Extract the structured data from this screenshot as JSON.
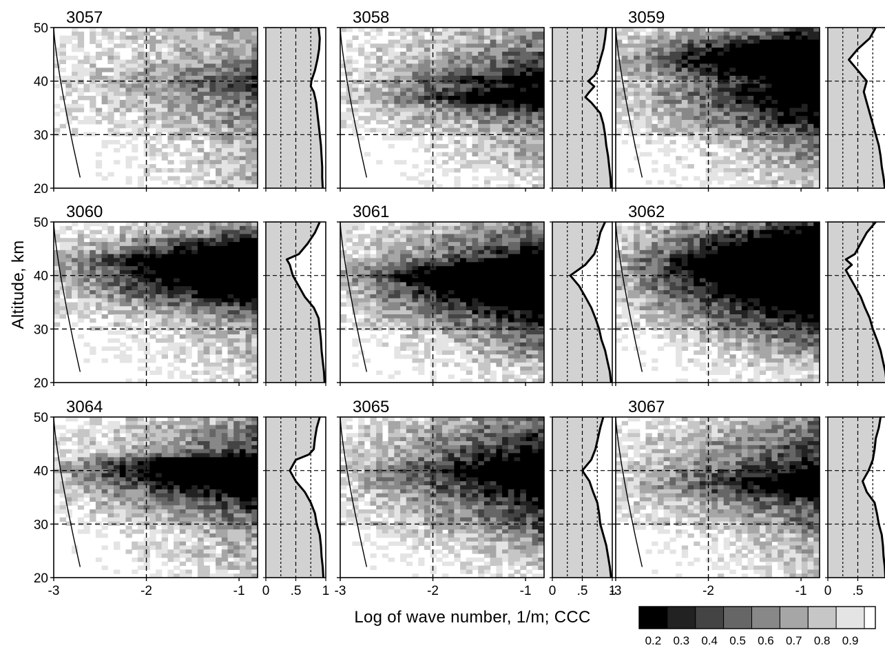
{
  "chart_data": {
    "type": "heatmap",
    "ylabel": "Altitude, km",
    "xlabel": "Log of wave number, 1/m;  CCC",
    "ylim": [
      20,
      50
    ],
    "yticks": [
      "20",
      "30",
      "40",
      "50"
    ],
    "xlim_main": [
      -3,
      -0.8
    ],
    "xticks_main": [
      {
        "value": -3,
        "label": "-3"
      },
      {
        "value": -2,
        "label": "-2"
      },
      {
        "value": -1,
        "label": "-1"
      }
    ],
    "xlim_side": [
      0,
      1
    ],
    "xticks_side": [
      {
        "value": 0,
        "label": "0"
      },
      {
        "value": 0.5,
        "label": ".5"
      },
      {
        "value": 1,
        "label": "1"
      }
    ],
    "colorbar": {
      "levels": [
        0.2,
        0.3,
        0.4,
        0.5,
        0.6,
        0.7,
        0.8,
        0.9
      ],
      "labels": [
        "0.2",
        "0.3",
        "0.4",
        "0.5",
        "0.6",
        "0.7",
        "0.8",
        "0.9"
      ],
      "colors": [
        "#000000",
        "#222222",
        "#444444",
        "#666666",
        "#888888",
        "#a6a6a6",
        "#c6c6c6",
        "#e4e4e4",
        "#ffffff"
      ]
    },
    "dashed_lines": {
      "altitudes": [
        30,
        40
      ],
      "wavenumber": -2
    },
    "panels": [
      {
        "id": "3057",
        "ccc_profile": {
          "altitude": [
            20,
            22,
            24,
            26,
            28,
            30,
            32,
            34,
            36,
            38,
            39,
            40,
            41,
            42,
            44,
            46,
            48,
            50
          ],
          "ccc": [
            0.95,
            0.94,
            0.94,
            0.93,
            0.92,
            0.9,
            0.88,
            0.86,
            0.84,
            0.8,
            0.75,
            0.76,
            0.79,
            0.82,
            0.86,
            0.89,
            0.9,
            0.88
          ]
        }
      },
      {
        "id": "3058",
        "ccc_profile": {
          "altitude": [
            20,
            22,
            24,
            26,
            28,
            30,
            32,
            34,
            36,
            37,
            38,
            39,
            40,
            41,
            42,
            44,
            46,
            48,
            50
          ],
          "ccc": [
            0.98,
            0.97,
            0.95,
            0.93,
            0.9,
            0.88,
            0.85,
            0.8,
            0.65,
            0.55,
            0.62,
            0.7,
            0.6,
            0.7,
            0.75,
            0.8,
            0.85,
            0.88,
            0.9
          ]
        }
      },
      {
        "id": "3059",
        "ccc_profile": {
          "altitude": [
            20,
            22,
            24,
            26,
            28,
            30,
            32,
            34,
            36,
            38,
            40,
            42,
            44,
            46,
            48,
            50
          ],
          "ccc": [
            0.95,
            0.93,
            0.9,
            0.88,
            0.85,
            0.8,
            0.75,
            0.7,
            0.65,
            0.6,
            0.65,
            0.5,
            0.35,
            0.5,
            0.7,
            0.8
          ]
        }
      },
      {
        "id": "3060",
        "ccc_profile": {
          "altitude": [
            20,
            22,
            24,
            26,
            28,
            30,
            32,
            34,
            36,
            38,
            40,
            42,
            43,
            44,
            46,
            48,
            50
          ],
          "ccc": [
            0.98,
            0.97,
            0.95,
            0.93,
            0.92,
            0.9,
            0.88,
            0.8,
            0.65,
            0.55,
            0.45,
            0.4,
            0.35,
            0.55,
            0.7,
            0.82,
            0.9
          ]
        }
      },
      {
        "id": "3061",
        "ccc_profile": {
          "altitude": [
            20,
            22,
            24,
            26,
            28,
            30,
            32,
            34,
            36,
            38,
            40,
            42,
            44,
            46,
            48,
            50
          ],
          "ccc": [
            0.98,
            0.96,
            0.92,
            0.88,
            0.82,
            0.78,
            0.72,
            0.65,
            0.55,
            0.45,
            0.3,
            0.55,
            0.7,
            0.76,
            0.8,
            0.88
          ]
        }
      },
      {
        "id": "3062",
        "ccc_profile": {
          "altitude": [
            20,
            22,
            24,
            26,
            28,
            30,
            32,
            34,
            36,
            38,
            40,
            41,
            42,
            43,
            44,
            46,
            48,
            50
          ],
          "ccc": [
            0.98,
            0.96,
            0.92,
            0.88,
            0.82,
            0.75,
            0.7,
            0.62,
            0.55,
            0.45,
            0.35,
            0.3,
            0.4,
            0.3,
            0.45,
            0.55,
            0.65,
            0.8
          ]
        }
      },
      {
        "id": "3064",
        "ccc_profile": {
          "altitude": [
            20,
            22,
            24,
            26,
            28,
            30,
            32,
            34,
            36,
            38,
            40,
            42,
            43,
            44,
            46,
            48,
            50
          ],
          "ccc": [
            0.96,
            0.95,
            0.93,
            0.92,
            0.9,
            0.85,
            0.82,
            0.75,
            0.65,
            0.5,
            0.4,
            0.5,
            0.72,
            0.8,
            0.82,
            0.85,
            0.9
          ]
        }
      },
      {
        "id": "3065",
        "ccc_profile": {
          "altitude": [
            20,
            22,
            24,
            26,
            28,
            30,
            32,
            34,
            36,
            38,
            40,
            42,
            44,
            46,
            48,
            50
          ],
          "ccc": [
            0.98,
            0.96,
            0.93,
            0.9,
            0.85,
            0.8,
            0.78,
            0.75,
            0.68,
            0.62,
            0.5,
            0.65,
            0.72,
            0.76,
            0.8,
            0.85
          ]
        }
      },
      {
        "id": "3067",
        "ccc_profile": {
          "altitude": [
            20,
            22,
            24,
            26,
            28,
            30,
            32,
            34,
            36,
            38,
            40,
            42,
            44,
            46,
            48,
            50
          ],
          "ccc": [
            0.96,
            0.95,
            0.93,
            0.92,
            0.9,
            0.85,
            0.82,
            0.78,
            0.65,
            0.58,
            0.68,
            0.75,
            0.78,
            0.8,
            0.85,
            0.88
          ]
        }
      }
    ]
  }
}
